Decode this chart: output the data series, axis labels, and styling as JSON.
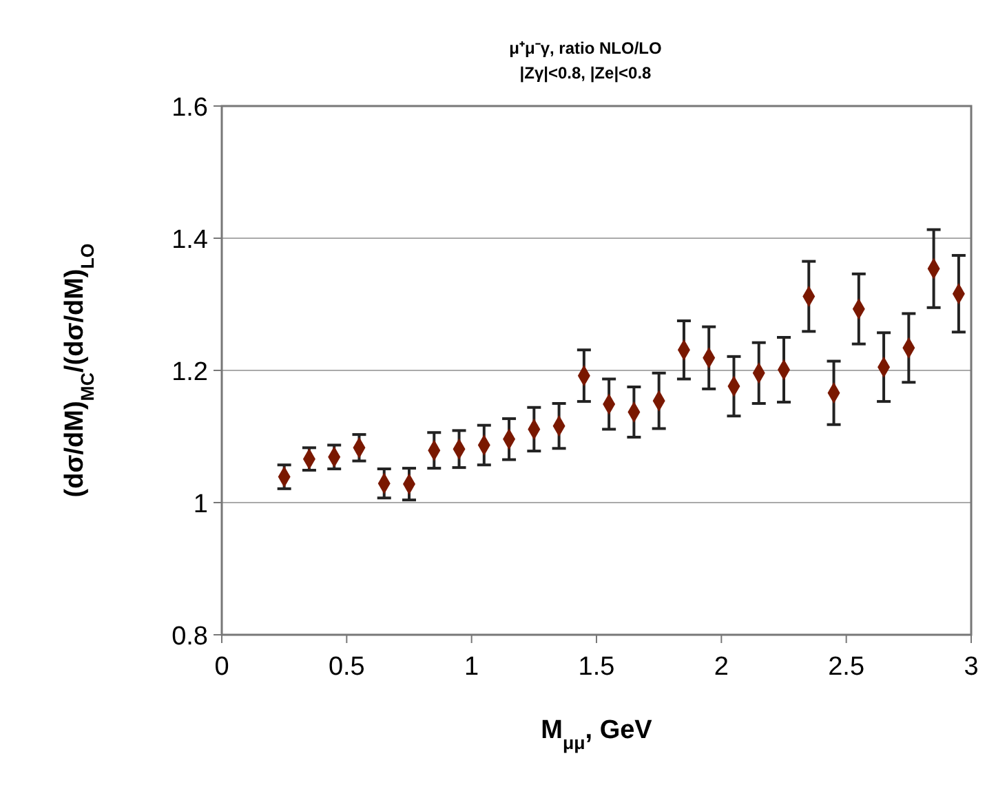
{
  "chart_data": {
    "type": "scatter",
    "title": "μ⁺μ⁻γ, ratio NLO/LO",
    "subtitle": "|Zγ|<0.8, |Ze|<0.8",
    "xlabel": "M$_{μμ}$, GeV",
    "ylabel": "(dσ/dM)$_{MC}$/(dσ/dM)$_{LO}$",
    "x": [
      0.25,
      0.35,
      0.45,
      0.55,
      0.65,
      0.75,
      0.85,
      0.95,
      1.05,
      1.15,
      1.25,
      1.35,
      1.45,
      1.55,
      1.65,
      1.75,
      1.85,
      1.95,
      2.05,
      2.15,
      2.25,
      2.35,
      2.45,
      2.55,
      2.65,
      2.75,
      2.85,
      2.95
    ],
    "series": [
      {
        "color": "#7a1800",
        "values": [
          1.039,
          1.066,
          1.069,
          1.083,
          1.029,
          1.028,
          1.079,
          1.081,
          1.087,
          1.096,
          1.111,
          1.116,
          1.192,
          1.149,
          1.137,
          1.154,
          1.231,
          1.219,
          1.176,
          1.196,
          1.201,
          1.312,
          1.166,
          1.293,
          1.205,
          1.234,
          1.354,
          1.316
        ],
        "errors": [
          0.018,
          0.017,
          0.018,
          0.02,
          0.022,
          0.024,
          0.027,
          0.028,
          0.03,
          0.031,
          0.033,
          0.034,
          0.039,
          0.038,
          0.038,
          0.042,
          0.044,
          0.047,
          0.045,
          0.046,
          0.049,
          0.053,
          0.048,
          0.053,
          0.052,
          0.052,
          0.059,
          0.058
        ]
      }
    ],
    "xlim": [
      0,
      3
    ],
    "xticks": [
      0,
      0.5,
      1,
      1.5,
      2,
      2.5,
      3
    ],
    "ylim": [
      0.8,
      1.6
    ],
    "yticks": [
      0.8,
      1,
      1.2,
      1.4,
      1.6
    ],
    "grid": "y",
    "marker": "diamond"
  }
}
